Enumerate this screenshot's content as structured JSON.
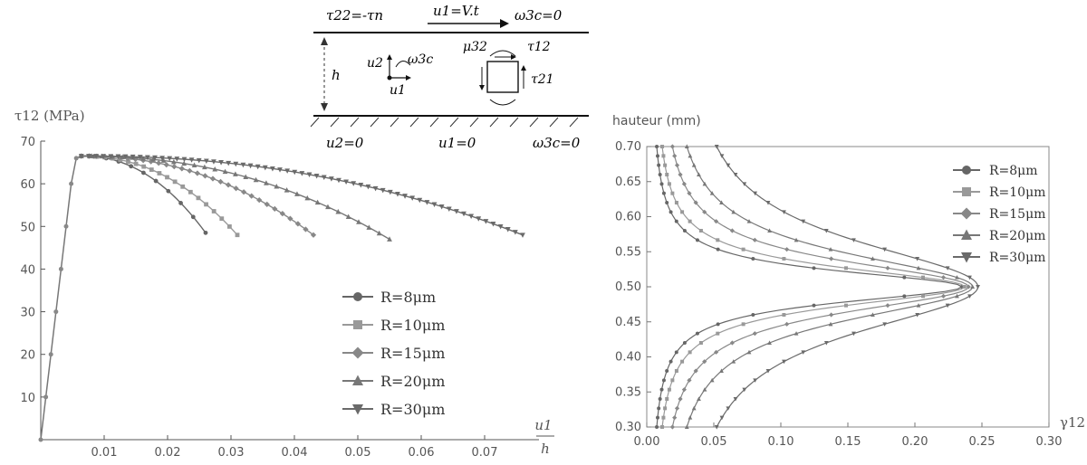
{
  "schematic": {
    "top_left": "τ22=-τn",
    "top_center": "u1=V.t",
    "top_right": "ω3c=0",
    "height_label": "h",
    "u2_label": "u2",
    "u1_label": "u1",
    "omega_label": "ω3c",
    "mu_label": "μ32",
    "tau12_label": "τ12",
    "tau21_label": "τ21",
    "bottom_left": "u2=0",
    "bottom_center": "u1=0",
    "bottom_right": "ω3c=0"
  },
  "chart_data": [
    {
      "type": "line",
      "title": "",
      "ylabel": "τ12 (MPa)",
      "xlabel": "u1/h",
      "xlim": [
        0,
        0.08
      ],
      "ylim": [
        0,
        70
      ],
      "xticks": [
        0.01,
        0.02,
        0.03,
        0.04,
        0.05,
        0.06,
        0.07
      ],
      "yticks": [
        0,
        10,
        20,
        30,
        40,
        50,
        60,
        70
      ],
      "grid": false,
      "legend_position": "bottom-right",
      "elastic_branch": {
        "x": [
          0,
          0.0008,
          0.0016,
          0.0024,
          0.0032,
          0.004,
          0.0048,
          0.0056,
          0.0064
        ],
        "y": [
          0,
          10,
          20,
          30,
          40,
          50,
          60,
          66,
          66.5
        ]
      },
      "series": [
        {
          "name": "R=8μm",
          "marker": "circle",
          "peak": [
            0.0064,
            66.5
          ],
          "end": [
            0.026,
            48.5
          ]
        },
        {
          "name": "R=10μm",
          "marker": "square",
          "peak": [
            0.0064,
            66.5
          ],
          "end": [
            0.031,
            48
          ]
        },
        {
          "name": "R=15μm",
          "marker": "diamond",
          "peak": [
            0.0064,
            66.5
          ],
          "end": [
            0.043,
            48
          ]
        },
        {
          "name": "R=20μm",
          "marker": "triangle-up",
          "peak": [
            0.0064,
            66.5
          ],
          "end": [
            0.055,
            47
          ]
        },
        {
          "name": "R=30μm",
          "marker": "triangle-down",
          "peak": [
            0.0064,
            66.5
          ],
          "end": [
            0.076,
            48
          ]
        }
      ]
    },
    {
      "type": "line",
      "title": "",
      "ylabel": "hauteur (mm)",
      "xlabel": "γ12",
      "xlim": [
        0,
        0.3
      ],
      "ylim": [
        0.3,
        0.7
      ],
      "xticks": [
        "0.00",
        "0.05",
        "0.10",
        "0.15",
        "0.20",
        "0.25",
        "0.30"
      ],
      "yticks": [
        "0.30",
        "0.35",
        "0.40",
        "0.45",
        "0.50",
        "0.55",
        "0.60",
        "0.65",
        "0.70"
      ],
      "grid": false,
      "legend_position": "top-right",
      "series": [
        {
          "name": "R=8μm",
          "marker": "circle",
          "gamma_peak": 0.235,
          "gamma_edge": 0.003
        },
        {
          "name": "R=10μm",
          "marker": "square",
          "gamma_peak": 0.237,
          "gamma_edge": 0.005
        },
        {
          "name": "R=15μm",
          "marker": "diamond",
          "gamma_peak": 0.24,
          "gamma_edge": 0.008
        },
        {
          "name": "R=20μm",
          "marker": "triangle-up",
          "gamma_peak": 0.243,
          "gamma_edge": 0.012
        },
        {
          "name": "R=30μm",
          "marker": "triangle-down",
          "gamma_peak": 0.247,
          "gamma_edge": 0.021
        }
      ]
    }
  ]
}
